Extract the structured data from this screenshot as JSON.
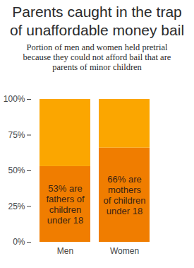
{
  "chart_data": {
    "type": "bar",
    "stacked": true,
    "title": "Parents caught in the trap of unaffordable money bail",
    "subtitle": "Portion of men and women held pretrial because they could not afford bail that are parents of minor children",
    "categories": [
      "Men",
      "Women"
    ],
    "series": [
      {
        "color": "#f07d00",
        "values": [
          53,
          66
        ],
        "value_labels": [
          "53% are fathers of children under 18",
          "66% are mothers of children under 18"
        ]
      },
      {
        "color": "#fba600",
        "values": [
          47,
          34
        ]
      }
    ],
    "ylim": [
      0,
      100
    ],
    "yticks": [
      {
        "value": 0,
        "label": "0%"
      },
      {
        "value": 25,
        "label": "25%"
      },
      {
        "value": 50,
        "label": "50%"
      },
      {
        "value": 75,
        "label": "75%"
      },
      {
        "value": 100,
        "label": "100%"
      }
    ],
    "grid": false
  }
}
